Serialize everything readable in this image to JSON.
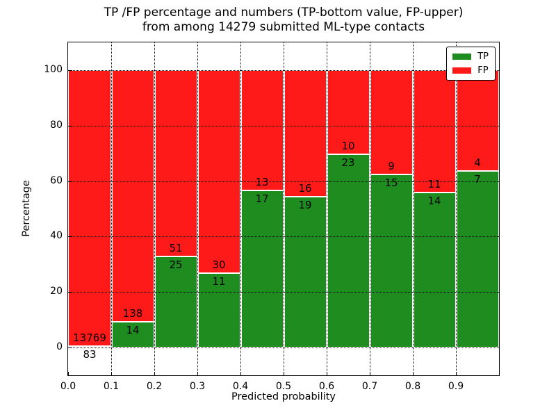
{
  "chart_data": {
    "type": "bar",
    "stacked": true,
    "normalized": "each bin scaled to 100 percent",
    "title_lines": [
      "TP /FP percentage and numbers (TP-bottom value, FP-upper)",
      "from among 14279 submitted ML-type contacts"
    ],
    "xlabel": "Predicted probability",
    "ylabel": "Percentage",
    "total_contacts": 14279,
    "x_tick_labels": [
      "0.0",
      "0.1",
      "0.2",
      "0.3",
      "0.4",
      "0.5",
      "0.6",
      "0.7",
      "0.8",
      "0.9"
    ],
    "y_tick_values": [
      0,
      20,
      40,
      60,
      80,
      100
    ],
    "xlim": [
      0.0,
      1.0
    ],
    "ylim": [
      -10,
      110
    ],
    "grid": true,
    "bin_width": 0.1,
    "series": [
      {
        "name": "TP",
        "color": "#1f8c1f",
        "counts": [
          83,
          14,
          25,
          11,
          17,
          19,
          23,
          15,
          14,
          7
        ]
      },
      {
        "name": "FP",
        "color": "#ff1a1a",
        "counts": [
          13769,
          138,
          51,
          30,
          13,
          16,
          10,
          9,
          11,
          4
        ]
      }
    ],
    "tp_percent_by_bin": [
      0.6,
      9.2,
      32.9,
      26.8,
      56.7,
      54.3,
      69.7,
      62.5,
      56.0,
      63.6
    ],
    "legend": {
      "position": "upper right",
      "entries": [
        "TP",
        "FP"
      ]
    }
  }
}
